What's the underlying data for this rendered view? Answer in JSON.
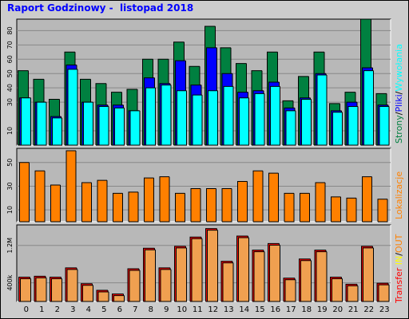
{
  "title": "Raport Godzinowy -  listopad 2018",
  "colors": {
    "background": "#cccccc",
    "plot_bg": "#b8b8b8",
    "pages": "#008040",
    "files": "#0000ff",
    "hits": "#00ffff",
    "sites": "#ff8000",
    "kb_in": "#ff8000",
    "kb_out": "#ffff00",
    "transfer": "#ff0000"
  },
  "labels": {
    "pages": "Strony",
    "files": "Pliki",
    "hits": "Wywołania",
    "sep": "/",
    "sites": "Lokalizacje",
    "transfer": "Transfer",
    "in": "IN",
    "out": "OUT"
  },
  "chart_data": [
    {
      "type": "bar",
      "name": "requests",
      "categories": [
        "0",
        "1",
        "2",
        "3",
        "4",
        "5",
        "6",
        "7",
        "8",
        "9",
        "10",
        "11",
        "12",
        "13",
        "14",
        "15",
        "16",
        "17",
        "18",
        "19",
        "20",
        "21",
        "22",
        "23"
      ],
      "yticks": [
        "10",
        "30",
        "40",
        "50",
        "60",
        "70",
        "80"
      ],
      "ylim": [
        0,
        88
      ],
      "grid": true,
      "series": [
        {
          "name": "Strony",
          "values": [
            52,
            46,
            32,
            65,
            46,
            43,
            37,
            39,
            60,
            60,
            72,
            55,
            83,
            68,
            57,
            52,
            65,
            31,
            48,
            65,
            29,
            37,
            88,
            36
          ]
        },
        {
          "name": "Pliki",
          "values": [
            33,
            30,
            20,
            56,
            30,
            28,
            28,
            24,
            47,
            43,
            59,
            42,
            68,
            50,
            37,
            38,
            44,
            26,
            33,
            50,
            24,
            30,
            54,
            28
          ]
        },
        {
          "name": "Wywołania",
          "values": [
            33,
            30,
            19,
            53,
            30,
            27,
            26,
            24,
            40,
            42,
            38,
            35,
            38,
            41,
            33,
            36,
            41,
            24,
            32,
            49,
            23,
            27,
            52,
            27
          ]
        }
      ]
    },
    {
      "type": "bar",
      "name": "sites",
      "categories": [
        "0",
        "1",
        "2",
        "3",
        "4",
        "5",
        "6",
        "7",
        "8",
        "9",
        "10",
        "11",
        "12",
        "13",
        "14",
        "15",
        "16",
        "17",
        "18",
        "19",
        "20",
        "21",
        "22",
        "23"
      ],
      "yticks": [
        "10",
        "30",
        "50"
      ],
      "ylim": [
        0,
        62
      ],
      "grid": true,
      "series": [
        {
          "name": "Lokalizacje",
          "values": [
            50,
            43,
            31,
            60,
            33,
            35,
            24,
            25,
            37,
            38,
            24,
            28,
            28,
            28,
            34,
            43,
            41,
            24,
            24,
            33,
            21,
            20,
            38,
            19
          ]
        }
      ]
    },
    {
      "type": "bar",
      "name": "transfer",
      "categories": [
        "0",
        "1",
        "2",
        "3",
        "4",
        "5",
        "6",
        "7",
        "8",
        "9",
        "10",
        "11",
        "12",
        "13",
        "14",
        "15",
        "16",
        "17",
        "18",
        "19",
        "20",
        "21",
        "22",
        "23"
      ],
      "yticks": [
        "400k",
        "1.2M"
      ],
      "ylim": [
        0,
        1640000
      ],
      "grid": true,
      "series": [
        {
          "name": "Transfer",
          "values": [
            520000,
            540000,
            520000,
            720000,
            380000,
            240000,
            160000,
            700000,
            1140000,
            720000,
            1180000,
            1380000,
            1560000,
            860000,
            1400000,
            1100000,
            1240000,
            500000,
            910000,
            1100000,
            520000,
            370000,
            1180000,
            390000
          ]
        }
      ]
    }
  ]
}
